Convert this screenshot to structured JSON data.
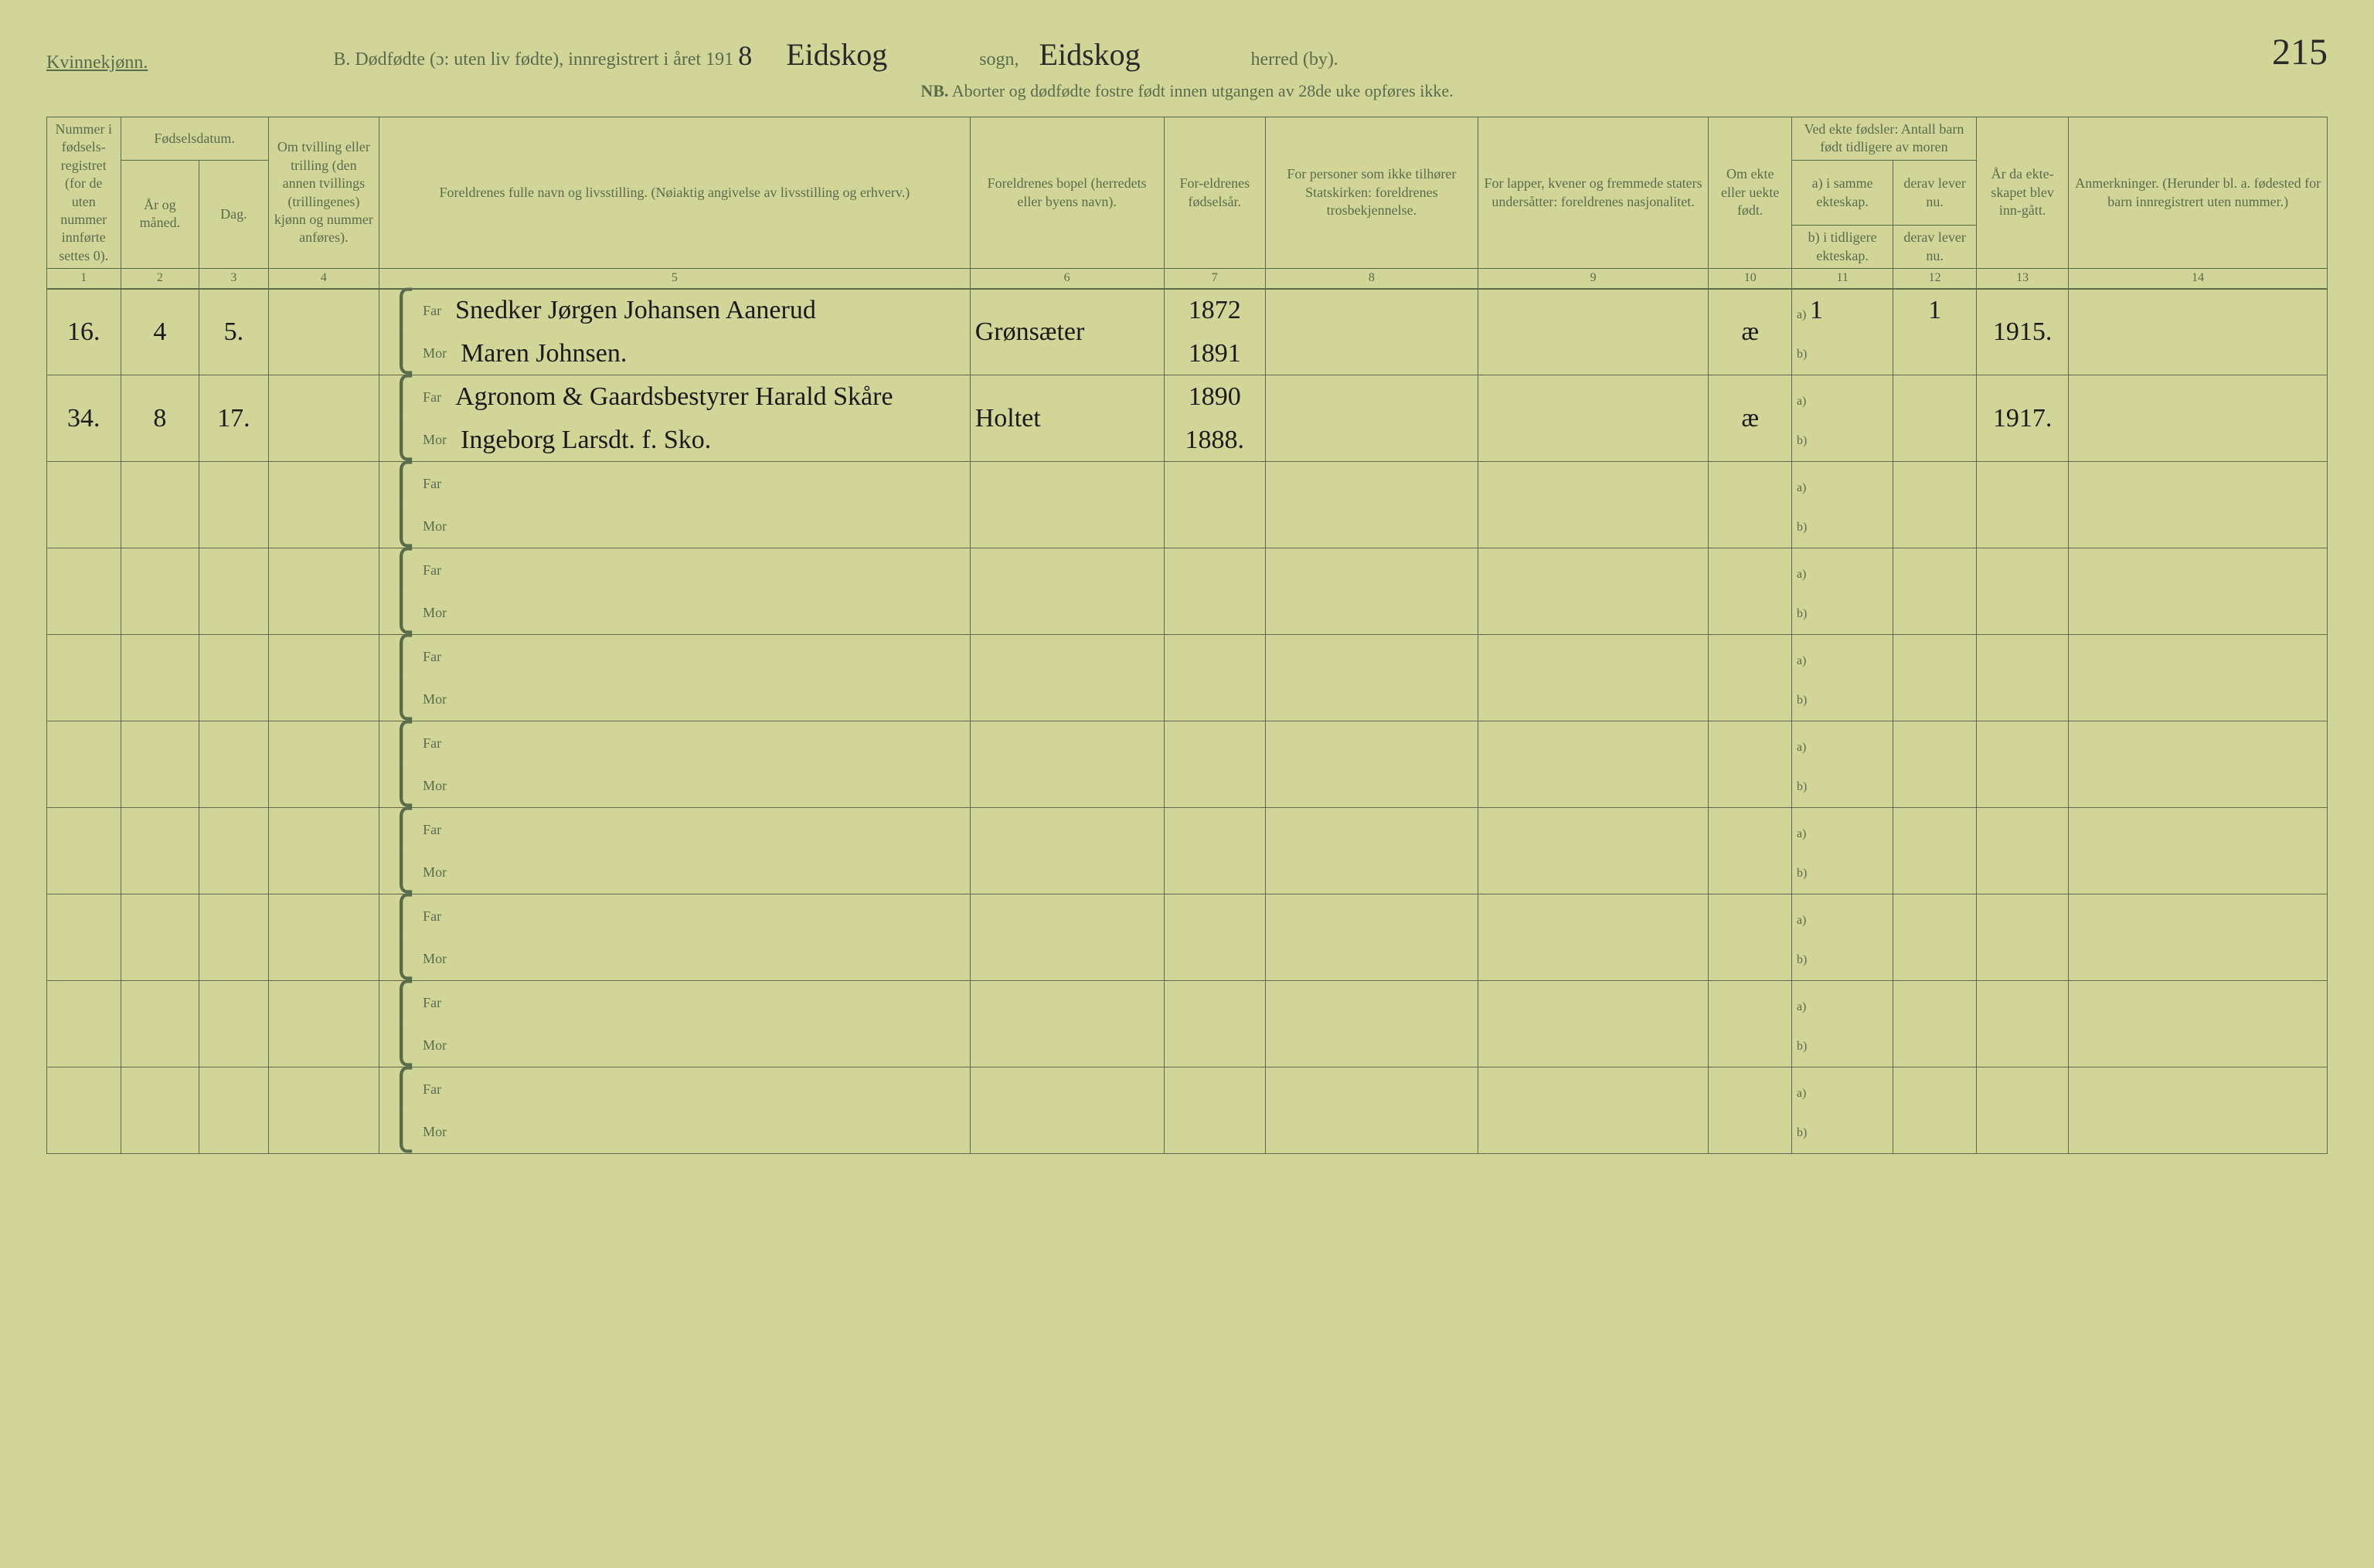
{
  "header": {
    "gender": "Kvinnekjønn.",
    "title_prefix": "B. Dødfødte (ɔ: uten liv fødte), innregistrert i året 191",
    "year_suffix": "8",
    "sogn_label": "sogn,",
    "sogn_value": "Eidskog",
    "herred_value": "Eidskog",
    "herred_label": "herred (by).",
    "page_number": "215",
    "nb_prefix": "NB.",
    "nb_text": "Aborter og dødfødte fostre født innen utgangen av 28de uke opføres ikke."
  },
  "columns": {
    "c1": "Nummer i fødsels-registret (for de uten nummer innførte settes 0).",
    "c23_top": "Fødselsdatum.",
    "c2": "År og måned.",
    "c3": "Dag.",
    "c4": "Om tvilling eller trilling (den annen tvillings (trillingenes) kjønn og nummer anføres).",
    "c5": "Foreldrenes fulle navn og livsstilling. (Nøiaktig angivelse av livsstilling og erhverv.)",
    "c6": "Foreldrenes bopel (herredets eller byens navn).",
    "c7": "For-eldrenes fødselsår.",
    "c8": "For personer som ikke tilhører Statskirken: foreldrenes trosbekjennelse.",
    "c9": "For lapper, kvener og fremmede staters undersåtter: foreldrenes nasjonalitet.",
    "c10": "Om ekte eller uekte født.",
    "c1112_top": "Ved ekte fødsler: Antall barn født tidligere av moren",
    "c11a": "a) i samme ekteskap.",
    "c11b": "b) i tidligere ekteskap.",
    "c12a": "derav lever nu.",
    "c12b": "derav lever nu.",
    "c13": "År da ekte-skapet blev inn-gått.",
    "c14": "Anmerkninger. (Herunder bl. a. fødested for barn innregistrert uten nummer.)"
  },
  "col_numbers": [
    "1",
    "2",
    "3",
    "4",
    "5",
    "6",
    "7",
    "8",
    "9",
    "10",
    "11",
    "12",
    "13",
    "14"
  ],
  "labels": {
    "far": "Far",
    "mor": "Mor",
    "a": "a)",
    "b": "b)"
  },
  "rows": [
    {
      "num": "16.",
      "month": "4",
      "day": "5.",
      "far": "Snedker Jørgen Johansen Aanerud",
      "mor": "Maren Johnsen.",
      "bopel": "Grønsæter",
      "far_year": "1872",
      "mor_year": "1891",
      "ekte": "æ",
      "c11a": "1",
      "c12a": "1",
      "ekteskap_year": "1915."
    },
    {
      "num": "34.",
      "month": "8",
      "day": "17.",
      "far": "Agronom & Gaardsbestyrer Harald Skåre",
      "mor": "Ingeborg Larsdt. f. Sko.",
      "bopel": "Holtet",
      "far_year": "1890",
      "mor_year": "1888.",
      "ekte": "æ",
      "c11a": "",
      "c12a": "",
      "ekteskap_year": "1917."
    },
    {
      "num": "",
      "month": "",
      "day": "",
      "far": "",
      "mor": "",
      "bopel": "",
      "far_year": "",
      "mor_year": "",
      "ekte": "",
      "c11a": "",
      "c12a": "",
      "ekteskap_year": ""
    },
    {
      "num": "",
      "month": "",
      "day": "",
      "far": "",
      "mor": "",
      "bopel": "",
      "far_year": "",
      "mor_year": "",
      "ekte": "",
      "c11a": "",
      "c12a": "",
      "ekteskap_year": ""
    },
    {
      "num": "",
      "month": "",
      "day": "",
      "far": "",
      "mor": "",
      "bopel": "",
      "far_year": "",
      "mor_year": "",
      "ekte": "",
      "c11a": "",
      "c12a": "",
      "ekteskap_year": ""
    },
    {
      "num": "",
      "month": "",
      "day": "",
      "far": "",
      "mor": "",
      "bopel": "",
      "far_year": "",
      "mor_year": "",
      "ekte": "",
      "c11a": "",
      "c12a": "",
      "ekteskap_year": ""
    },
    {
      "num": "",
      "month": "",
      "day": "",
      "far": "",
      "mor": "",
      "bopel": "",
      "far_year": "",
      "mor_year": "",
      "ekte": "",
      "c11a": "",
      "c12a": "",
      "ekteskap_year": ""
    },
    {
      "num": "",
      "month": "",
      "day": "",
      "far": "",
      "mor": "",
      "bopel": "",
      "far_year": "",
      "mor_year": "",
      "ekte": "",
      "c11a": "",
      "c12a": "",
      "ekteskap_year": ""
    },
    {
      "num": "",
      "month": "",
      "day": "",
      "far": "",
      "mor": "",
      "bopel": "",
      "far_year": "",
      "mor_year": "",
      "ekte": "",
      "c11a": "",
      "c12a": "",
      "ekteskap_year": ""
    },
    {
      "num": "",
      "month": "",
      "day": "",
      "far": "",
      "mor": "",
      "bopel": "",
      "far_year": "",
      "mor_year": "",
      "ekte": "",
      "c11a": "",
      "c12a": "",
      "ekteskap_year": ""
    }
  ],
  "style": {
    "background": "#d1d698",
    "ink": "#5a6b4c",
    "handwriting": "#1a1a1a"
  }
}
